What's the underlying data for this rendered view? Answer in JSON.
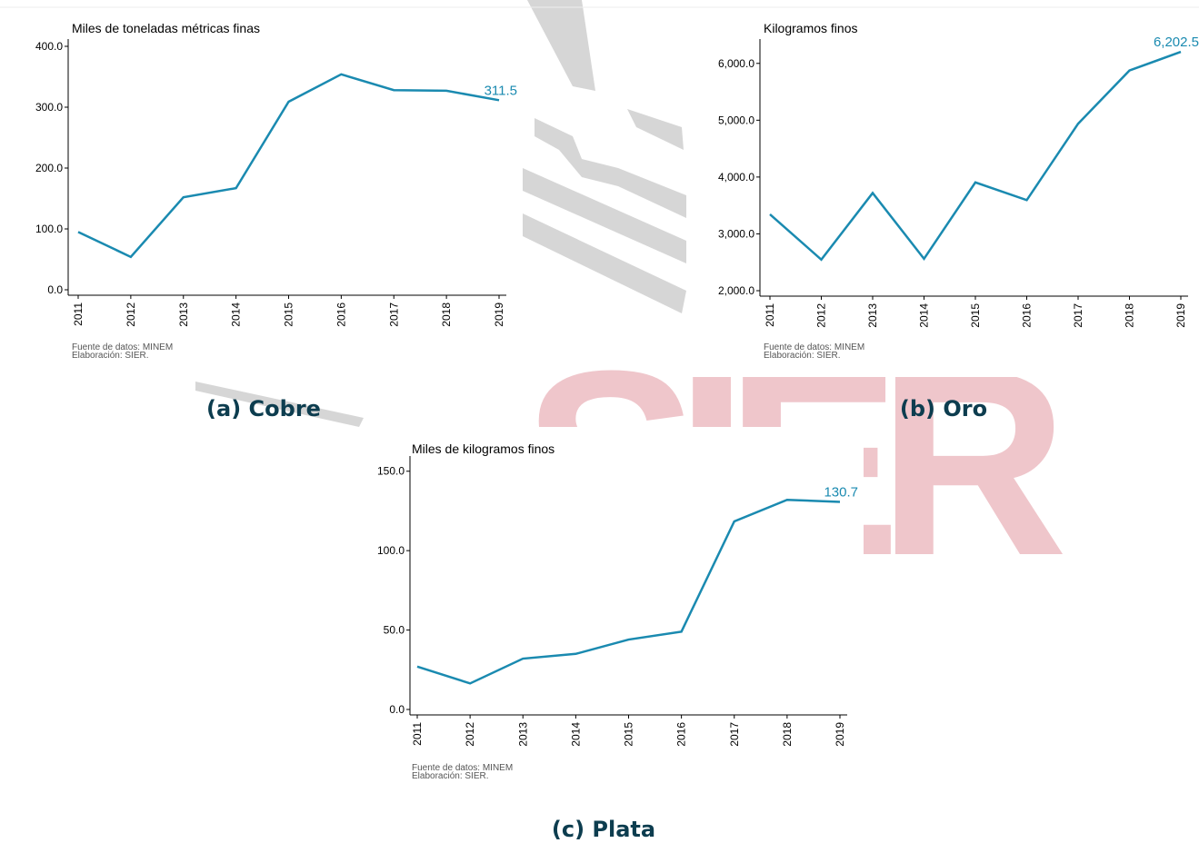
{
  "watermark": "SIER",
  "chart_data": [
    {
      "type": "line",
      "title": "Miles de toneladas métricas finas",
      "caption": "(a) Cobre",
      "source": [
        "Fuente de datos: MINEM",
        "Elaboración: SIER."
      ],
      "categories": [
        "2011",
        "2012",
        "2013",
        "2014",
        "2015",
        "2016",
        "2017",
        "2018",
        "2019"
      ],
      "values": [
        95,
        54,
        152,
        167,
        309,
        354,
        328,
        327,
        311.5
      ],
      "value_labels": [
        null,
        null,
        null,
        null,
        null,
        null,
        null,
        null,
        "311.5"
      ],
      "color": "#1a8ab0",
      "ylim": [
        0,
        400
      ],
      "yticks": [
        {
          "value": 0,
          "label": "0.0"
        },
        {
          "value": 100,
          "label": "100.0"
        },
        {
          "value": 200,
          "label": "200.0"
        },
        {
          "value": 300,
          "label": "300.0"
        },
        {
          "value": 400,
          "label": "400.0"
        }
      ]
    },
    {
      "type": "line",
      "title": "Kilogramos finos",
      "caption": "(b) Oro",
      "source": [
        "Fuente de datos: MINEM",
        "Elaboración: SIER."
      ],
      "categories": [
        "2011",
        "2012",
        "2013",
        "2014",
        "2015",
        "2016",
        "2017",
        "2018",
        "2019"
      ],
      "values": [
        3344,
        2547,
        3719,
        2562,
        3906,
        3594,
        4938,
        5875,
        6202.5
      ],
      "value_labels": [
        null,
        null,
        null,
        null,
        null,
        null,
        null,
        null,
        "6,202.5"
      ],
      "color": "#1a8ab0",
      "ylim": [
        2000,
        6300
      ],
      "yticks": [
        {
          "value": 2000,
          "label": "2,000.0"
        },
        {
          "value": 3000,
          "label": "3,000.0"
        },
        {
          "value": 4000,
          "label": "4,000.0"
        },
        {
          "value": 5000,
          "label": "5,000.0"
        },
        {
          "value": 6000,
          "label": "6,000.0"
        }
      ]
    },
    {
      "type": "line",
      "title": "Miles de kilogramos finos",
      "caption": "(c) Plata",
      "source": [
        "Fuente de datos: MINEM",
        "Elaboración: SIER."
      ],
      "categories": [
        "2011",
        "2012",
        "2013",
        "2014",
        "2015",
        "2016",
        "2017",
        "2018",
        "2019"
      ],
      "values": [
        27,
        16.4,
        32,
        35,
        44,
        49,
        118.4,
        132,
        130.7
      ],
      "value_labels": [
        null,
        null,
        null,
        null,
        null,
        null,
        null,
        null,
        "130.7"
      ],
      "color": "#1a8ab0",
      "ylim": [
        0,
        155
      ],
      "yticks": [
        {
          "value": 0,
          "label": "0.0"
        },
        {
          "value": 50,
          "label": "50.0"
        },
        {
          "value": 100,
          "label": "100.0"
        },
        {
          "value": 150,
          "label": "150.0"
        }
      ]
    }
  ]
}
